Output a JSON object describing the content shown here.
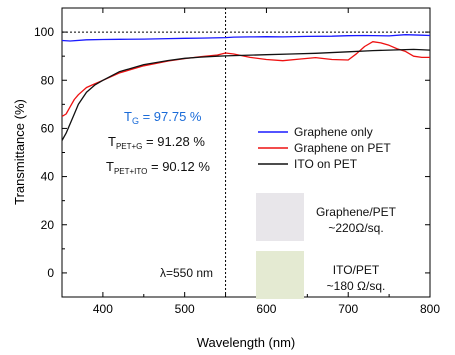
{
  "chart_data": {
    "type": "line",
    "xlabel": "Wavelength (nm)",
    "ylabel": "Transmittance (%)",
    "xlim": [
      350,
      800
    ],
    "ylim": [
      -10,
      110
    ],
    "xticks": [
      400,
      500,
      600,
      700,
      800
    ],
    "yticks": [
      0,
      20,
      40,
      60,
      80,
      100
    ],
    "x_tick_labels": [
      "400",
      "500",
      "600",
      "700",
      "800"
    ],
    "y_tick_labels": [
      "0",
      "20",
      "40",
      "60",
      "80",
      "100"
    ],
    "reference_line_y": 100,
    "marker_line_x": 550,
    "legend_position": "right-middle",
    "series": [
      {
        "name": "Graphene only",
        "color": "#1a1aff",
        "x": [
          350,
          360,
          380,
          400,
          420,
          450,
          480,
          500,
          520,
          550,
          560,
          580,
          600,
          620,
          650,
          680,
          700,
          720,
          750,
          770,
          790,
          800
        ],
        "values": [
          96.5,
          96.3,
          96.8,
          96.9,
          97.0,
          97.1,
          97.3,
          97.4,
          97.5,
          97.7,
          97.9,
          98.0,
          98.1,
          98.0,
          98.2,
          98.3,
          98.5,
          98.6,
          98.4,
          98.9,
          98.7,
          98.6
        ]
      },
      {
        "name": "Graphene on PET",
        "color": "#ee1111",
        "x": [
          350,
          355,
          360,
          365,
          370,
          380,
          390,
          400,
          420,
          450,
          480,
          500,
          520,
          540,
          550,
          560,
          580,
          600,
          620,
          640,
          660,
          680,
          700,
          710,
          720,
          730,
          740,
          750,
          760,
          770,
          780,
          790,
          800
        ],
        "values": [
          65,
          66,
          69,
          72,
          74,
          77,
          78.5,
          80,
          83,
          86,
          88,
          89,
          89.8,
          90.5,
          91.3,
          90.9,
          89.5,
          88.6,
          88.1,
          88.8,
          89.4,
          88.6,
          88.4,
          91.0,
          94.0,
          96.0,
          95.5,
          94.5,
          93.0,
          92.0,
          90.0,
          89.5,
          89.5
        ]
      },
      {
        "name": "ITO on PET",
        "color": "#111111",
        "x": [
          350,
          355,
          360,
          365,
          370,
          380,
          390,
          400,
          420,
          450,
          480,
          500,
          520,
          540,
          550,
          570,
          600,
          630,
          660,
          700,
          730,
          760,
          780,
          800
        ],
        "values": [
          55,
          58,
          62,
          66,
          70,
          75,
          78,
          80,
          83.5,
          86.5,
          88.2,
          89.1,
          89.6,
          90.0,
          90.1,
          90.3,
          90.6,
          90.9,
          91.2,
          91.8,
          92.3,
          92.6,
          92.8,
          92.5
        ]
      }
    ],
    "annotations": {
      "tg_main": "T",
      "tg_sub": "G",
      "tg_value": " = 97.75 %",
      "tpetg_main": "T",
      "tpetg_sub": "PET+G",
      "tpetg_value": " = 91.28 %",
      "tpetito_main": "T",
      "tpetito_sub": "PET+ITO",
      "tpetito_value": " = 90.12 %",
      "lambda": "λ=550 nm"
    },
    "sample_swatches": [
      {
        "label_line1": "Graphene/PET",
        "label_line2": "~220Ω/sq.",
        "color": "#e8e6ea"
      },
      {
        "label_line1": "ITO/PET",
        "label_line2": "~180 Ω/sq.",
        "color": "#e4ead2"
      }
    ],
    "colors": {
      "annotation_blue": "#1a6bd8",
      "axis": "#000000"
    }
  }
}
